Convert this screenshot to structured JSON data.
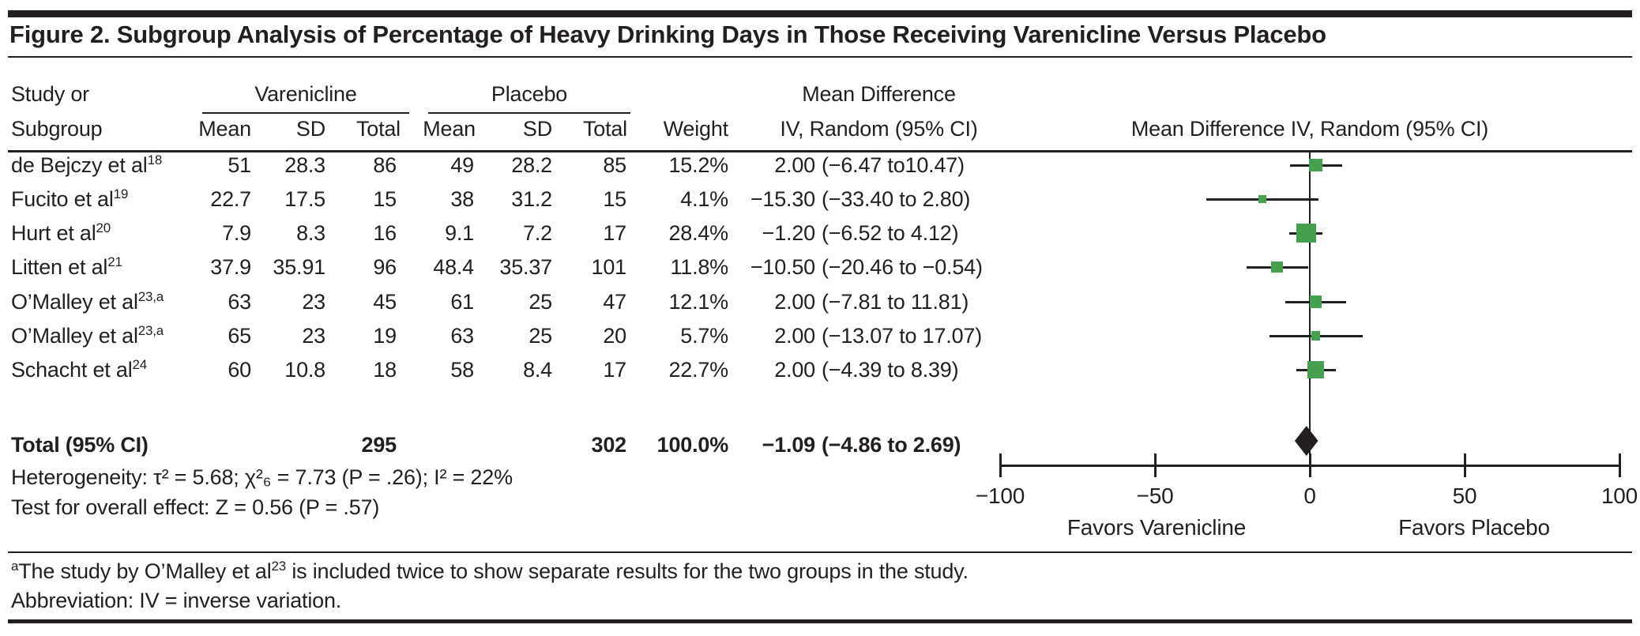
{
  "figure": {
    "title": "Figure 2. Subgroup Analysis of Percentage of Heavy Drinking Days in Those Receiving Varenicline Versus Placebo"
  },
  "table": {
    "header": {
      "study_line1": "Study or",
      "study_line2": "Subgroup",
      "group1": "Varenicline",
      "group2": "Placebo",
      "sub": [
        "Mean",
        "SD",
        "Total"
      ],
      "weight": "Weight",
      "md_line1": "Mean Difference",
      "md_line2": "IV, Random (95% CI)",
      "plot_header": "Mean Difference IV, Random (95% CI)"
    },
    "rows": [
      {
        "study": "de Bejczy et al",
        "sup": "18",
        "v_mean": "51",
        "v_sd": "28.3",
        "v_total": "86",
        "p_mean": "49",
        "p_sd": "28.2",
        "p_total": "85",
        "weight": "15.2%",
        "est": "2.00",
        "ci": "(−6.47 to10.47)"
      },
      {
        "study": "Fucito et al",
        "sup": "19",
        "v_mean": "22.7",
        "v_sd": "17.5",
        "v_total": "15",
        "p_mean": "38",
        "p_sd": "31.2",
        "p_total": "15",
        "weight": "4.1%",
        "est": "−15.30",
        "ci": "(−33.40 to 2.80)"
      },
      {
        "study": "Hurt et al",
        "sup": "20",
        "v_mean": "7.9",
        "v_sd": "8.3",
        "v_total": "16",
        "p_mean": "9.1",
        "p_sd": "7.2",
        "p_total": "17",
        "weight": "28.4%",
        "est": "−1.20",
        "ci": "(−6.52 to 4.12)"
      },
      {
        "study": "Litten et al",
        "sup": "21",
        "v_mean": "37.9",
        "v_sd": "35.91",
        "v_total": "96",
        "p_mean": "48.4",
        "p_sd": "35.37",
        "p_total": "101",
        "weight": "11.8%",
        "est": "−10.50",
        "ci": "(−20.46 to −0.54)"
      },
      {
        "study": "O’Malley et al",
        "sup": "23,a",
        "v_mean": "63",
        "v_sd": "23",
        "v_total": "45",
        "p_mean": "61",
        "p_sd": "25",
        "p_total": "47",
        "weight": "12.1%",
        "est": "2.00",
        "ci": "(−7.81 to 11.81)"
      },
      {
        "study": "O’Malley et al",
        "sup": "23,a",
        "v_mean": "65",
        "v_sd": "23",
        "v_total": "19",
        "p_mean": "63",
        "p_sd": "25",
        "p_total": "20",
        "weight": "5.7%",
        "est": "2.00",
        "ci": "(−13.07 to 17.07)"
      },
      {
        "study": "Schacht et al",
        "sup": "24",
        "v_mean": "60",
        "v_sd": "10.8",
        "v_total": "18",
        "p_mean": "58",
        "p_sd": "8.4",
        "p_total": "17",
        "weight": "22.7%",
        "est": "2.00",
        "ci": "(−4.39 to 8.39)"
      }
    ],
    "total": {
      "label": "Total (95% CI)",
      "v_total": "295",
      "p_total": "302",
      "weight": "100.0%",
      "est": "−1.09",
      "ci": "(−4.86 to 2.69)"
    },
    "heterogeneity": "Heterogeneity: τ² = 5.68; χ²₆ = 7.73 (P = .26); I² = 22%",
    "overall_effect": "Test for overall effect: Z = 0.56 (P = .57)"
  },
  "chart_data": {
    "type": "forest",
    "title": "Mean Difference IV, Random (95% CI)",
    "x_axis": {
      "min": -100,
      "max": 100,
      "ticks": [
        -100,
        -50,
        0,
        50,
        100
      ],
      "label_left": "Favors Varenicline",
      "label_right": "Favors Placebo"
    },
    "studies": [
      {
        "name": "de Bejczy et al 18",
        "md": 2.0,
        "ci_low": -6.47,
        "ci_high": 10.47,
        "weight_pct": 15.2
      },
      {
        "name": "Fucito et al 19",
        "md": -15.3,
        "ci_low": -33.4,
        "ci_high": 2.8,
        "weight_pct": 4.1
      },
      {
        "name": "Hurt et al 20",
        "md": -1.2,
        "ci_low": -6.52,
        "ci_high": 4.12,
        "weight_pct": 28.4
      },
      {
        "name": "Litten et al 21",
        "md": -10.5,
        "ci_low": -20.46,
        "ci_high": -0.54,
        "weight_pct": 11.8
      },
      {
        "name": "O’Malley et al 23,a",
        "md": 2.0,
        "ci_low": -7.81,
        "ci_high": 11.81,
        "weight_pct": 12.1
      },
      {
        "name": "O’Malley et al 23,a",
        "md": 2.0,
        "ci_low": -13.07,
        "ci_high": 17.07,
        "weight_pct": 5.7
      },
      {
        "name": "Schacht et al 24",
        "md": 2.0,
        "ci_low": -4.39,
        "ci_high": 8.39,
        "weight_pct": 22.7
      }
    ],
    "total": {
      "md": -1.09,
      "ci_low": -4.86,
      "ci_high": 2.69,
      "weight_pct": 100.0
    },
    "marker_color": "#44a04f",
    "diamond_color": "#231f20",
    "line_color": "#231f20"
  },
  "footnotes": {
    "note_sup": "a",
    "note_pre": "The study by O’Malley et al",
    "note_ref": "23",
    "note_post": " is included twice to show separate results for the two groups in the study.",
    "abbreviation": "Abbreviation: IV = inverse variation."
  }
}
